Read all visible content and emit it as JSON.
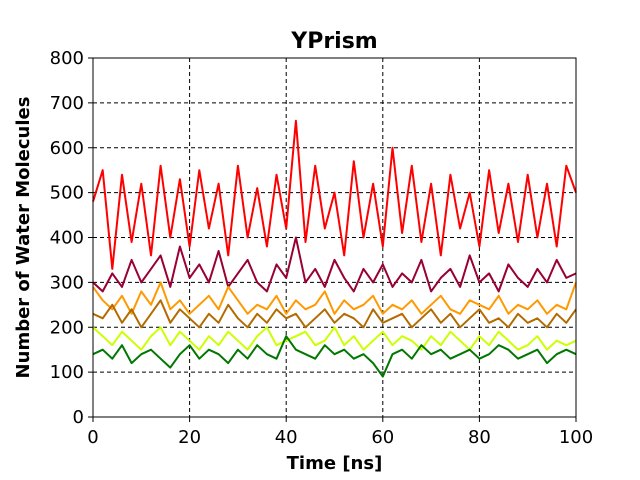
{
  "chart_data": {
    "type": "line",
    "title": "YPrism",
    "xlabel": "Time [ns]",
    "ylabel": "Number of Water Molecules",
    "xlim": [
      0,
      100
    ],
    "ylim": [
      0,
      800
    ],
    "xticks": [
      0,
      20,
      40,
      60,
      80,
      100
    ],
    "yticks": [
      0,
      100,
      200,
      300,
      400,
      500,
      600,
      700,
      800
    ],
    "grid": true,
    "grid_style": "dashed",
    "legend": false,
    "series": [
      {
        "color": "#ff0000",
        "x": [
          0,
          2,
          4,
          6,
          8,
          10,
          12,
          14,
          16,
          18,
          20,
          22,
          24,
          26,
          28,
          30,
          32,
          34,
          36,
          38,
          40,
          42,
          44,
          46,
          48,
          50,
          52,
          54,
          56,
          58,
          60,
          62,
          64,
          66,
          68,
          70,
          72,
          74,
          76,
          78,
          80,
          82,
          84,
          86,
          88,
          90,
          92,
          94,
          96,
          98,
          100
        ],
        "y": [
          480,
          550,
          330,
          540,
          390,
          520,
          360,
          560,
          400,
          530,
          380,
          550,
          420,
          520,
          360,
          560,
          400,
          510,
          380,
          540,
          420,
          660,
          390,
          560,
          420,
          500,
          360,
          570,
          400,
          520,
          380,
          600,
          410,
          560,
          390,
          520,
          360,
          540,
          420,
          500,
          380,
          550,
          410,
          520,
          390,
          540,
          400,
          520,
          380,
          560,
          500
        ]
      },
      {
        "color": "#990033",
        "x": [
          0,
          2,
          4,
          6,
          8,
          10,
          12,
          14,
          16,
          18,
          20,
          22,
          24,
          26,
          28,
          30,
          32,
          34,
          36,
          38,
          40,
          42,
          44,
          46,
          48,
          50,
          52,
          54,
          56,
          58,
          60,
          62,
          64,
          66,
          68,
          70,
          72,
          74,
          76,
          78,
          80,
          82,
          84,
          86,
          88,
          90,
          92,
          94,
          96,
          98,
          100
        ],
        "y": [
          300,
          280,
          320,
          290,
          350,
          300,
          330,
          360,
          290,
          380,
          310,
          340,
          300,
          370,
          290,
          320,
          350,
          300,
          280,
          340,
          310,
          400,
          300,
          330,
          290,
          350,
          310,
          280,
          330,
          300,
          340,
          290,
          320,
          300,
          350,
          280,
          310,
          330,
          290,
          360,
          300,
          320,
          280,
          340,
          310,
          290,
          330,
          300,
          350,
          310,
          320
        ]
      },
      {
        "color": "#ff9900",
        "x": [
          0,
          2,
          4,
          6,
          8,
          10,
          12,
          14,
          16,
          18,
          20,
          22,
          24,
          26,
          28,
          30,
          32,
          34,
          36,
          38,
          40,
          42,
          44,
          46,
          48,
          50,
          52,
          54,
          56,
          58,
          60,
          62,
          64,
          66,
          68,
          70,
          72,
          74,
          76,
          78,
          80,
          82,
          84,
          86,
          88,
          90,
          92,
          94,
          96,
          98,
          100
        ],
        "y": [
          290,
          260,
          240,
          270,
          230,
          280,
          250,
          300,
          240,
          260,
          230,
          250,
          270,
          240,
          290,
          260,
          230,
          250,
          240,
          270,
          230,
          260,
          240,
          250,
          280,
          230,
          260,
          240,
          250,
          270,
          230,
          250,
          240,
          260,
          230,
          250,
          270,
          240,
          230,
          260,
          250,
          240,
          270,
          230,
          250,
          240,
          260,
          230,
          250,
          240,
          300
        ]
      },
      {
        "color": "#b36b00",
        "x": [
          0,
          2,
          4,
          6,
          8,
          10,
          12,
          14,
          16,
          18,
          20,
          22,
          24,
          26,
          28,
          30,
          32,
          34,
          36,
          38,
          40,
          42,
          44,
          46,
          48,
          50,
          52,
          54,
          56,
          58,
          60,
          62,
          64,
          66,
          68,
          70,
          72,
          74,
          76,
          78,
          80,
          82,
          84,
          86,
          88,
          90,
          92,
          94,
          96,
          98,
          100
        ],
        "y": [
          230,
          220,
          250,
          210,
          240,
          200,
          230,
          260,
          210,
          240,
          220,
          200,
          230,
          210,
          250,
          220,
          200,
          230,
          210,
          240,
          220,
          230,
          200,
          220,
          240,
          210,
          230,
          220,
          200,
          240,
          210,
          220,
          230,
          200,
          220,
          240,
          210,
          230,
          200,
          220,
          240,
          210,
          220,
          200,
          230,
          210,
          220,
          200,
          230,
          210,
          240
        ]
      },
      {
        "color": "#ccff00",
        "x": [
          0,
          2,
          4,
          6,
          8,
          10,
          12,
          14,
          16,
          18,
          20,
          22,
          24,
          26,
          28,
          30,
          32,
          34,
          36,
          38,
          40,
          42,
          44,
          46,
          48,
          50,
          52,
          54,
          56,
          58,
          60,
          62,
          64,
          66,
          68,
          70,
          72,
          74,
          76,
          78,
          80,
          82,
          84,
          86,
          88,
          90,
          92,
          94,
          96,
          98,
          100
        ],
        "y": [
          200,
          180,
          160,
          190,
          170,
          150,
          180,
          200,
          160,
          190,
          170,
          150,
          180,
          160,
          190,
          170,
          150,
          180,
          200,
          160,
          170,
          180,
          190,
          160,
          170,
          200,
          160,
          180,
          150,
          170,
          190,
          160,
          180,
          170,
          150,
          180,
          160,
          190,
          170,
          150,
          180,
          160,
          190,
          170,
          150,
          160,
          180,
          150,
          170,
          160,
          170
        ]
      },
      {
        "color": "#007700",
        "x": [
          0,
          2,
          4,
          6,
          8,
          10,
          12,
          14,
          16,
          18,
          20,
          22,
          24,
          26,
          28,
          30,
          32,
          34,
          36,
          38,
          40,
          42,
          44,
          46,
          48,
          50,
          52,
          54,
          56,
          58,
          60,
          62,
          64,
          66,
          68,
          70,
          72,
          74,
          76,
          78,
          80,
          82,
          84,
          86,
          88,
          90,
          92,
          94,
          96,
          98,
          100
        ],
        "y": [
          140,
          150,
          130,
          160,
          120,
          140,
          150,
          130,
          110,
          140,
          160,
          130,
          150,
          140,
          120,
          150,
          130,
          160,
          140,
          130,
          180,
          150,
          140,
          130,
          160,
          140,
          150,
          130,
          140,
          120,
          90,
          140,
          150,
          130,
          160,
          140,
          150,
          130,
          140,
          150,
          130,
          140,
          160,
          150,
          130,
          140,
          150,
          120,
          140,
          150,
          140
        ]
      }
    ]
  }
}
